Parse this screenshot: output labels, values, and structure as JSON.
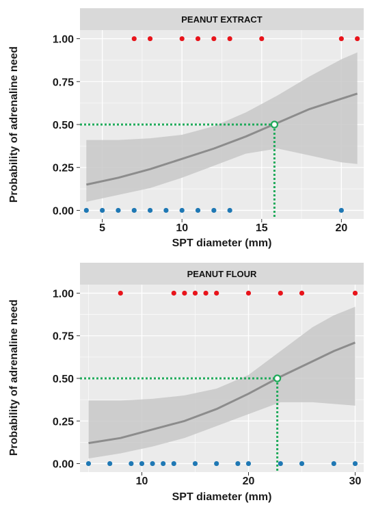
{
  "ylabel": "Probability of adrenaline need",
  "colors": {
    "panel_bg": "#ebebeb",
    "strip_bg": "#d9d9d9",
    "grid": "#ffffff",
    "ribbon": "#c8c8c8",
    "curve": "#8c8c8c",
    "positive_point": "#e8141b",
    "negative_point": "#1f78b4",
    "threshold": "#1faa5a"
  },
  "chart_data": [
    {
      "type": "scatter",
      "panel_title": "PEANUT EXTRACT",
      "xlabel": "SPT diameter (mm)",
      "ylabel": "Probability of adrenaline need",
      "xlim": [
        3.6,
        21.4
      ],
      "ylim": [
        -0.05,
        1.05
      ],
      "x_ticks": [
        5,
        10,
        15,
        20
      ],
      "y_ticks": [
        0.0,
        0.25,
        0.5,
        0.75,
        1.0
      ],
      "y_tick_labels": [
        "0.00",
        "0.25",
        "0.50",
        "0.75",
        "1.00"
      ],
      "grid": true,
      "series": [
        {
          "x": [
            7,
            8,
            10,
            11,
            12,
            13,
            15,
            20,
            21
          ],
          "y": [
            1,
            1,
            1,
            1,
            1,
            1,
            1,
            1,
            1
          ]
        },
        {
          "x": [
            4,
            5,
            6,
            7,
            8,
            9,
            10,
            11,
            12,
            13,
            20
          ],
          "y": [
            0,
            0,
            0,
            0,
            0,
            0,
            0,
            0,
            0,
            0,
            0
          ]
        }
      ],
      "fit": {
        "x": [
          4,
          6,
          8,
          10,
          12,
          14,
          16,
          18,
          20,
          21
        ],
        "y": [
          0.15,
          0.19,
          0.24,
          0.3,
          0.36,
          0.43,
          0.51,
          0.59,
          0.65,
          0.68
        ],
        "ci_low": [
          0.05,
          0.09,
          0.13,
          0.19,
          0.26,
          0.33,
          0.36,
          0.32,
          0.28,
          0.27
        ],
        "ci_high": [
          0.41,
          0.41,
          0.42,
          0.44,
          0.49,
          0.57,
          0.67,
          0.78,
          0.88,
          0.92
        ]
      },
      "threshold": {
        "x": 15.8,
        "y": 0.5
      }
    },
    {
      "type": "scatter",
      "panel_title": "PEANUT FLOUR",
      "xlabel": "SPT diameter (mm)",
      "ylabel": "Probability of adrenaline need",
      "xlim": [
        4.2,
        30.8
      ],
      "ylim": [
        -0.05,
        1.05
      ],
      "x_ticks": [
        10,
        20,
        30
      ],
      "y_ticks": [
        0.0,
        0.25,
        0.5,
        0.75,
        1.0
      ],
      "y_tick_labels": [
        "0.00",
        "0.25",
        "0.50",
        "0.75",
        "1.00"
      ],
      "grid": true,
      "series": [
        {
          "x": [
            8,
            13,
            14,
            15,
            16,
            17,
            20,
            23,
            25,
            30
          ],
          "y": [
            1,
            1,
            1,
            1,
            1,
            1,
            1,
            1,
            1,
            1
          ]
        },
        {
          "x": [
            5,
            7,
            9,
            10,
            11,
            12,
            13,
            15,
            17,
            19,
            20,
            23,
            25,
            28,
            30
          ],
          "y": [
            0,
            0,
            0,
            0,
            0,
            0,
            0,
            0,
            0,
            0,
            0,
            0,
            0,
            0,
            0
          ]
        }
      ],
      "fit": {
        "x": [
          5,
          8,
          11,
          14,
          17,
          20,
          23,
          26,
          28,
          30
        ],
        "y": [
          0.12,
          0.15,
          0.2,
          0.25,
          0.32,
          0.41,
          0.51,
          0.6,
          0.66,
          0.71
        ],
        "ci_low": [
          0.03,
          0.06,
          0.1,
          0.15,
          0.22,
          0.29,
          0.36,
          0.36,
          0.35,
          0.34
        ],
        "ci_high": [
          0.37,
          0.37,
          0.38,
          0.4,
          0.44,
          0.52,
          0.66,
          0.8,
          0.87,
          0.92
        ]
      },
      "threshold": {
        "x": 22.7,
        "y": 0.5
      }
    }
  ]
}
